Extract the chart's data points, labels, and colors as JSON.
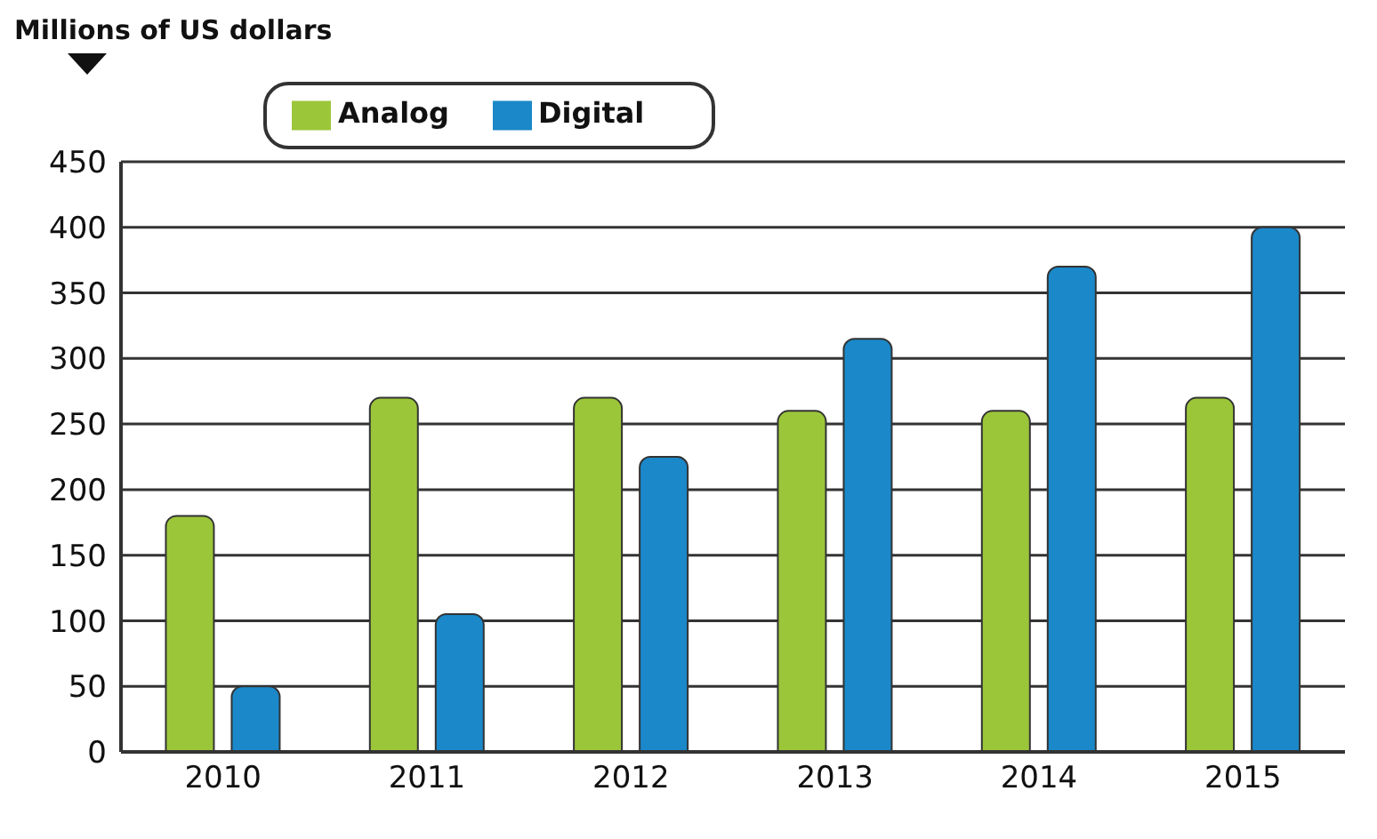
{
  "chart_data": {
    "type": "bar",
    "ylabel": "Millions of US dollars",
    "categories": [
      "2010",
      "2011",
      "2012",
      "2013",
      "2014",
      "2015"
    ],
    "series": [
      {
        "name": "Analog",
        "color": "#9cc63a",
        "values": [
          180,
          270,
          270,
          260,
          260,
          270
        ]
      },
      {
        "name": "Digital",
        "color": "#1a88c9",
        "values": [
          50,
          105,
          225,
          315,
          370,
          400
        ]
      }
    ],
    "ylim": [
      0,
      450
    ],
    "yticks": [
      0,
      50,
      100,
      150,
      200,
      250,
      300,
      350,
      400,
      450
    ],
    "grid": "y",
    "legend": "top left"
  }
}
